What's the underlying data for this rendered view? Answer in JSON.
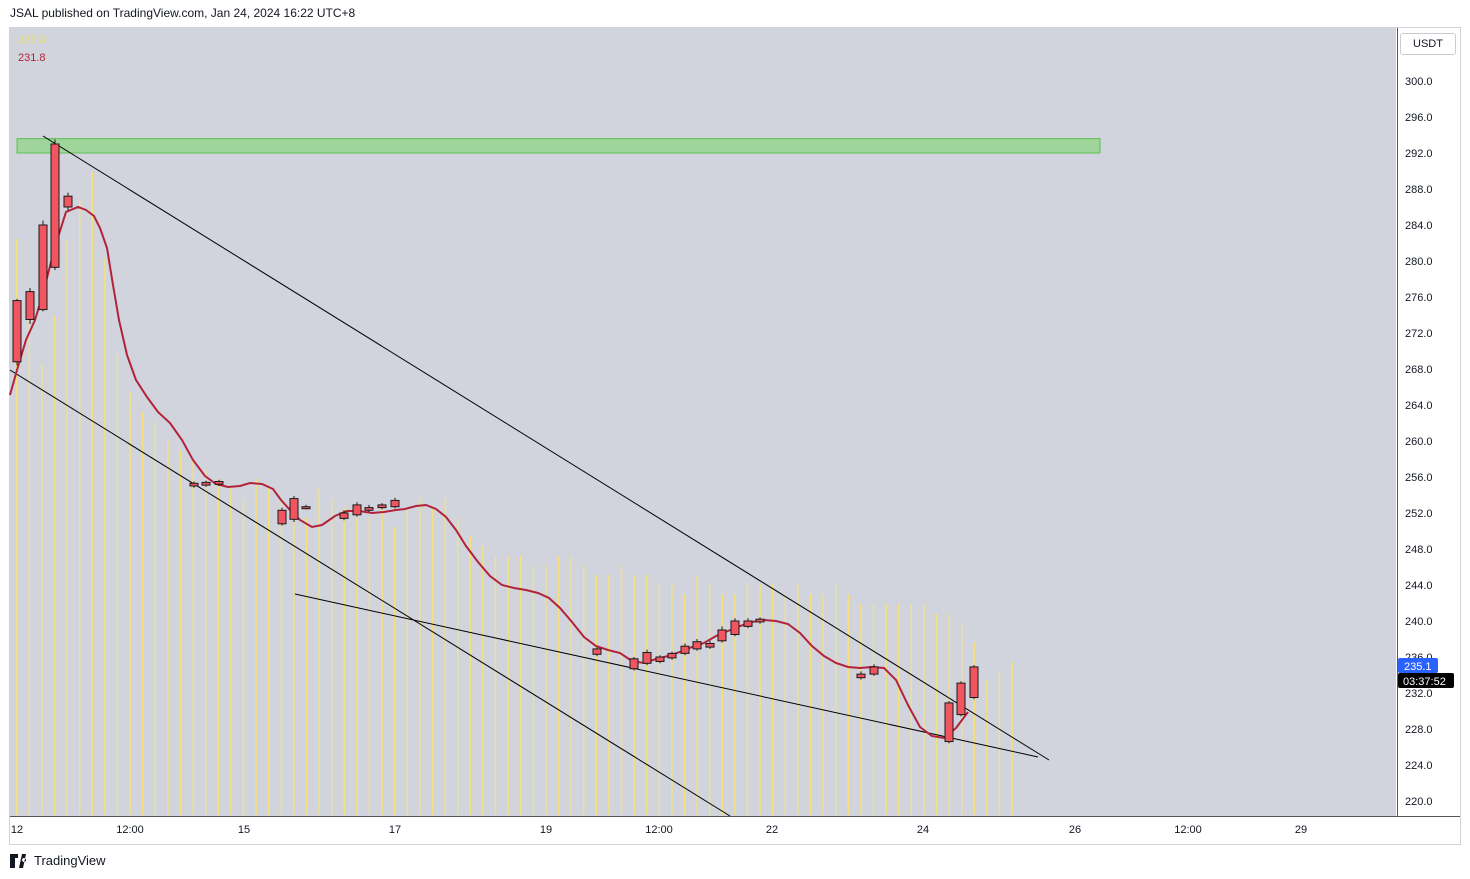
{
  "header": {
    "caption": "JSAL published on TradingView.com, Jan 24, 2024 16:22 UTC+8"
  },
  "legend": {
    "value_yellow": "233.3",
    "value_red": "231.8"
  },
  "price_axis": {
    "currency": "USDT",
    "current_price": "235.1",
    "countdown": "03:37:52",
    "ticks": [
      "300.0",
      "296.0",
      "292.0",
      "288.0",
      "284.0",
      "280.0",
      "276.0",
      "272.0",
      "268.0",
      "264.0",
      "260.0",
      "256.0",
      "252.0",
      "248.0",
      "244.0",
      "240.0",
      "236.0",
      "232.0",
      "228.0",
      "224.0",
      "220.0"
    ]
  },
  "time_axis": {
    "ticks": [
      "12",
      "12:00",
      "15",
      "17",
      "19",
      "12:00",
      "22",
      "24",
      "26",
      "12:00",
      "29"
    ]
  },
  "footer": {
    "brand": "TradingView"
  },
  "colors": {
    "background": "#d1d4dc",
    "candle_down": "#f05560",
    "candle_border": "#1a1a1a",
    "volume": "#f5e27a",
    "moving_average": "#b2233a",
    "zone": "#9fd49a",
    "zone_border": "#5fbf55",
    "trendline": "#000000",
    "price_label": "#2962ff"
  },
  "chart_data": {
    "type": "candlestick",
    "ylim": [
      219,
      306
    ],
    "resistance_zone": [
      292.0,
      293.6
    ],
    "trendlines": [
      {
        "from": [
          "12 Jan",
          294.0
        ],
        "to": [
          "25 Jan",
          224.6
        ]
      },
      {
        "from": [
          "12 Jan",
          268.0
        ],
        "to": [
          "21 Jan",
          219.0
        ]
      },
      {
        "from": [
          "15 Jan",
          243.4
        ],
        "to": [
          "25 Jan",
          224.6
        ]
      }
    ],
    "candles": [
      {
        "o": 268.8,
        "h": 275.8,
        "l": 268.4,
        "c": 275.6
      },
      {
        "o": 273.5,
        "h": 277.0,
        "l": 273.0,
        "c": 276.6
      },
      {
        "o": 274.6,
        "h": 284.5,
        "l": 274.4,
        "c": 284.0
      },
      {
        "o": 279.3,
        "h": 293.5,
        "l": 279.0,
        "c": 293.0
      },
      {
        "o": 286.0,
        "h": 287.6,
        "l": 285.6,
        "c": 287.2
      },
      {
        "o": 255.0,
        "h": 255.5,
        "l": 254.8,
        "c": 255.3
      },
      {
        "o": 255.1,
        "h": 255.6,
        "l": 254.9,
        "c": 255.4
      },
      {
        "o": 255.2,
        "h": 255.7,
        "l": 255.0,
        "c": 255.5
      },
      {
        "o": 250.8,
        "h": 252.6,
        "l": 250.6,
        "c": 252.3
      },
      {
        "o": 251.3,
        "h": 253.9,
        "l": 251.0,
        "c": 253.6
      },
      {
        "o": 252.6,
        "h": 252.9,
        "l": 252.4,
        "c": 252.7
      },
      {
        "o": 251.4,
        "h": 252.3,
        "l": 251.2,
        "c": 252.0
      },
      {
        "o": 251.8,
        "h": 253.2,
        "l": 251.6,
        "c": 252.9
      },
      {
        "o": 252.3,
        "h": 252.9,
        "l": 252.1,
        "c": 252.6
      },
      {
        "o": 252.6,
        "h": 253.1,
        "l": 252.4,
        "c": 252.9
      },
      {
        "o": 252.7,
        "h": 253.7,
        "l": 252.5,
        "c": 253.4
      },
      {
        "o": 236.3,
        "h": 237.1,
        "l": 236.1,
        "c": 236.9
      },
      {
        "o": 234.7,
        "h": 236.0,
        "l": 234.5,
        "c": 235.8
      },
      {
        "o": 235.3,
        "h": 236.8,
        "l": 235.1,
        "c": 236.5
      },
      {
        "o": 235.5,
        "h": 236.2,
        "l": 235.3,
        "c": 236.0
      },
      {
        "o": 235.9,
        "h": 236.6,
        "l": 235.7,
        "c": 236.4
      },
      {
        "o": 236.4,
        "h": 237.5,
        "l": 236.2,
        "c": 237.2
      },
      {
        "o": 236.9,
        "h": 238.0,
        "l": 236.7,
        "c": 237.7
      },
      {
        "o": 237.1,
        "h": 237.8,
        "l": 236.9,
        "c": 237.5
      },
      {
        "o": 237.8,
        "h": 239.4,
        "l": 237.6,
        "c": 239.0
      },
      {
        "o": 238.5,
        "h": 240.3,
        "l": 238.3,
        "c": 240.0
      },
      {
        "o": 239.4,
        "h": 240.3,
        "l": 239.2,
        "c": 240.0
      },
      {
        "o": 239.9,
        "h": 240.4,
        "l": 239.7,
        "c": 240.2
      },
      {
        "o": 233.7,
        "h": 234.4,
        "l": 233.5,
        "c": 234.1
      },
      {
        "o": 234.1,
        "h": 235.2,
        "l": 233.9,
        "c": 234.9
      },
      {
        "o": 226.6,
        "h": 231.1,
        "l": 226.4,
        "c": 230.9
      },
      {
        "o": 229.6,
        "h": 233.3,
        "l": 229.4,
        "c": 233.1
      },
      {
        "o": 231.5,
        "h": 235.1,
        "l": 231.3,
        "c": 234.9
      }
    ],
    "moving_average": [
      {
        "x": "12",
        "y": 266.5
      },
      {
        "x": "12",
        "y": 272.0
      },
      {
        "x": "12",
        "y": 276.0
      },
      {
        "x": "13",
        "y": 281.0
      },
      {
        "x": "13",
        "y": 286.0
      },
      {
        "x": "13",
        "y": 286.0
      },
      {
        "x": "13",
        "y": 281.5
      },
      {
        "x": "13",
        "y": 266.0
      },
      {
        "x": "13",
        "y": 260.0
      },
      {
        "x": "14",
        "y": 256.0
      },
      {
        "x": "14",
        "y": 255.0
      },
      {
        "x": "14",
        "y": 255.2
      },
      {
        "x": "15",
        "y": 254.8
      },
      {
        "x": "15",
        "y": 251.3
      },
      {
        "x": "15",
        "y": 252.3
      },
      {
        "x": "16",
        "y": 252.4
      },
      {
        "x": "16",
        "y": 251.8
      },
      {
        "x": "16",
        "y": 252.2
      },
      {
        "x": "17",
        "y": 252.8
      },
      {
        "x": "17",
        "y": 252.5
      },
      {
        "x": "17",
        "y": 251.5
      },
      {
        "x": "18",
        "y": 245.0
      },
      {
        "x": "18",
        "y": 243.5
      },
      {
        "x": "18",
        "y": 243.0
      },
      {
        "x": "19",
        "y": 241.6
      },
      {
        "x": "19",
        "y": 237.2
      },
      {
        "x": "19",
        "y": 236.2
      },
      {
        "x": "20",
        "y": 235.3
      },
      {
        "x": "20",
        "y": 235.6
      },
      {
        "x": "20",
        "y": 236.1
      },
      {
        "x": "21",
        "y": 237.2
      },
      {
        "x": "21",
        "y": 238.6
      },
      {
        "x": "21",
        "y": 239.6
      },
      {
        "x": "22",
        "y": 240.0
      },
      {
        "x": "22",
        "y": 236.2
      },
      {
        "x": "23",
        "y": 234.3
      },
      {
        "x": "23",
        "y": 234.5
      },
      {
        "x": "23",
        "y": 233.5
      },
      {
        "x": "24",
        "y": 228.6
      },
      {
        "x": "24",
        "y": 227.1
      },
      {
        "x": "24",
        "y": 229.6
      },
      {
        "x": "24",
        "y": 231.8
      }
    ],
    "volume": [
      60,
      53,
      47,
      52,
      60,
      64,
      67,
      58,
      48,
      44,
      42,
      41,
      39,
      38,
      37,
      36,
      35,
      34,
      33,
      35,
      34,
      33,
      32,
      31,
      34,
      33,
      32,
      31,
      31,
      32,
      30,
      32,
      33,
      32,
      33,
      31,
      29,
      28,
      27,
      27,
      27,
      26,
      26,
      27,
      27,
      26,
      25,
      25,
      26,
      25,
      25,
      24,
      24,
      23,
      25,
      24,
      23,
      23,
      24,
      24,
      24,
      23,
      24,
      23,
      23,
      24,
      23,
      22,
      22,
      22,
      22,
      22,
      22,
      21,
      21,
      20,
      18,
      14,
      15,
      16
    ]
  }
}
